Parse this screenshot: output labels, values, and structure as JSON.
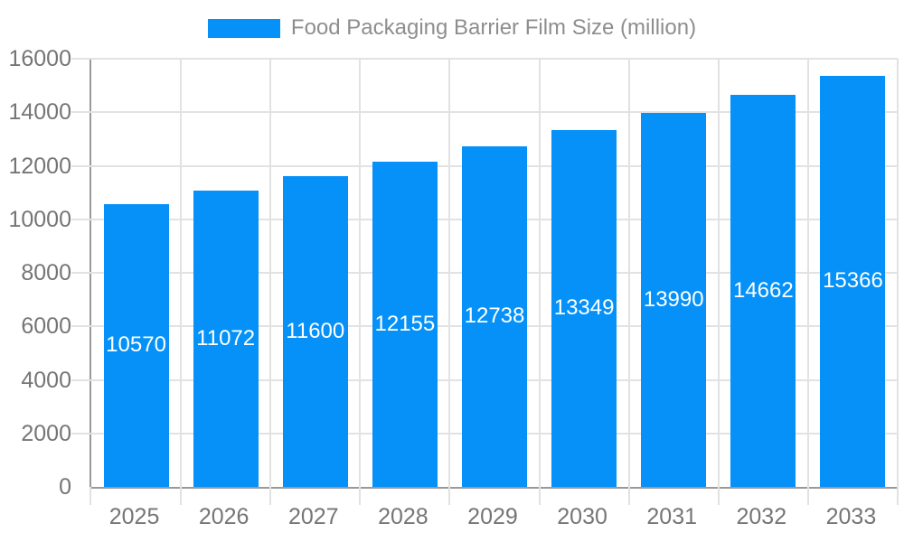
{
  "legend": {
    "label": "Food Packaging Barrier Film Size (million)"
  },
  "chart_data": {
    "type": "bar",
    "categories": [
      "2025",
      "2026",
      "2027",
      "2028",
      "2029",
      "2030",
      "2031",
      "2032",
      "2033"
    ],
    "series": [
      {
        "name": "Food Packaging Barrier Film Size (million)",
        "values": [
          10570,
          11072,
          11600,
          12155,
          12738,
          13349,
          13990,
          14662,
          15366
        ]
      }
    ],
    "title": "",
    "xlabel": "",
    "ylabel": "",
    "ylim": [
      0,
      16000
    ],
    "ytick_step": 2000,
    "ytick_labels": [
      "0",
      "2000",
      "4000",
      "6000",
      "8000",
      "10000",
      "12000",
      "14000",
      "16000"
    ],
    "grid": true,
    "legend_position": "top",
    "value_labels": "inside-center"
  },
  "colors": {
    "bar": "#0591f8",
    "axis_line": "#999999",
    "grid_line": "#e2e2e2",
    "axis_text": "#757575",
    "legend_text": "#8e8e8e",
    "value_label": "#ffffff"
  }
}
